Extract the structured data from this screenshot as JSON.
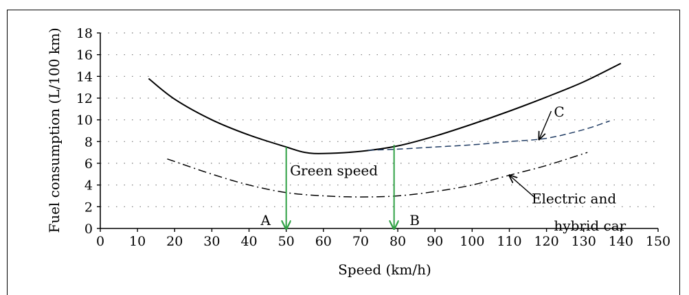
{
  "chart_data": {
    "type": "line",
    "xlabel": "Speed (km/h)",
    "ylabel": "Fuel consumption (L/100 km)",
    "xlim": [
      0,
      150
    ],
    "ylim": [
      0,
      18
    ],
    "x_ticks": [
      0,
      10,
      20,
      30,
      40,
      50,
      60,
      70,
      80,
      90,
      100,
      110,
      120,
      130,
      140,
      150
    ],
    "y_ticks": [
      0,
      2,
      4,
      6,
      8,
      10,
      12,
      14,
      16,
      18
    ],
    "grid": "dotted-horizontal",
    "series": [
      {
        "style": "solid",
        "color": "#000000",
        "x": [
          13,
          20,
          30,
          40,
          50,
          55,
          60,
          70,
          80,
          90,
          100,
          110,
          120,
          130,
          140
        ],
        "y": [
          13.8,
          11.9,
          10.0,
          8.6,
          7.5,
          7.0,
          6.9,
          7.1,
          7.6,
          8.5,
          9.6,
          10.8,
          12.1,
          13.5,
          15.2
        ]
      },
      {
        "style": "dashed",
        "color": "#1f3b63",
        "x": [
          72,
          80,
          90,
          100,
          110,
          120,
          130,
          137
        ],
        "y": [
          7.2,
          7.3,
          7.5,
          7.7,
          8.0,
          8.3,
          9.1,
          9.9
        ]
      },
      {
        "style": "dash-dot",
        "color": "#000000",
        "x": [
          18,
          30,
          40,
          50,
          60,
          70,
          80,
          90,
          100,
          110,
          120,
          131
        ],
        "y": [
          6.4,
          5.0,
          4.0,
          3.3,
          3.0,
          2.9,
          3.0,
          3.4,
          4.0,
          4.9,
          5.8,
          7.0
        ]
      }
    ],
    "markers": [
      {
        "label": "A",
        "x": 50,
        "y_from": 7.5,
        "y_to": 0,
        "color": "#2ea043"
      },
      {
        "label": "B",
        "x": 79,
        "y_from": 7.7,
        "y_to": 0,
        "color": "#2ea043"
      }
    ],
    "annotations": [
      {
        "text": "Green speed",
        "x": 51,
        "y": 4.9
      },
      {
        "text": "C",
        "x": 122,
        "y": 10.3,
        "arrow_to": [
          118,
          8.2
        ]
      },
      {
        "text": "Electric and",
        "x": 116,
        "y": 2.3
      },
      {
        "text": "hybrid car",
        "x": 122,
        "y": -0.2
      },
      {
        "text": "",
        "x": 117,
        "y": 2.8,
        "arrow_to": [
          110,
          4.9
        ]
      }
    ]
  }
}
